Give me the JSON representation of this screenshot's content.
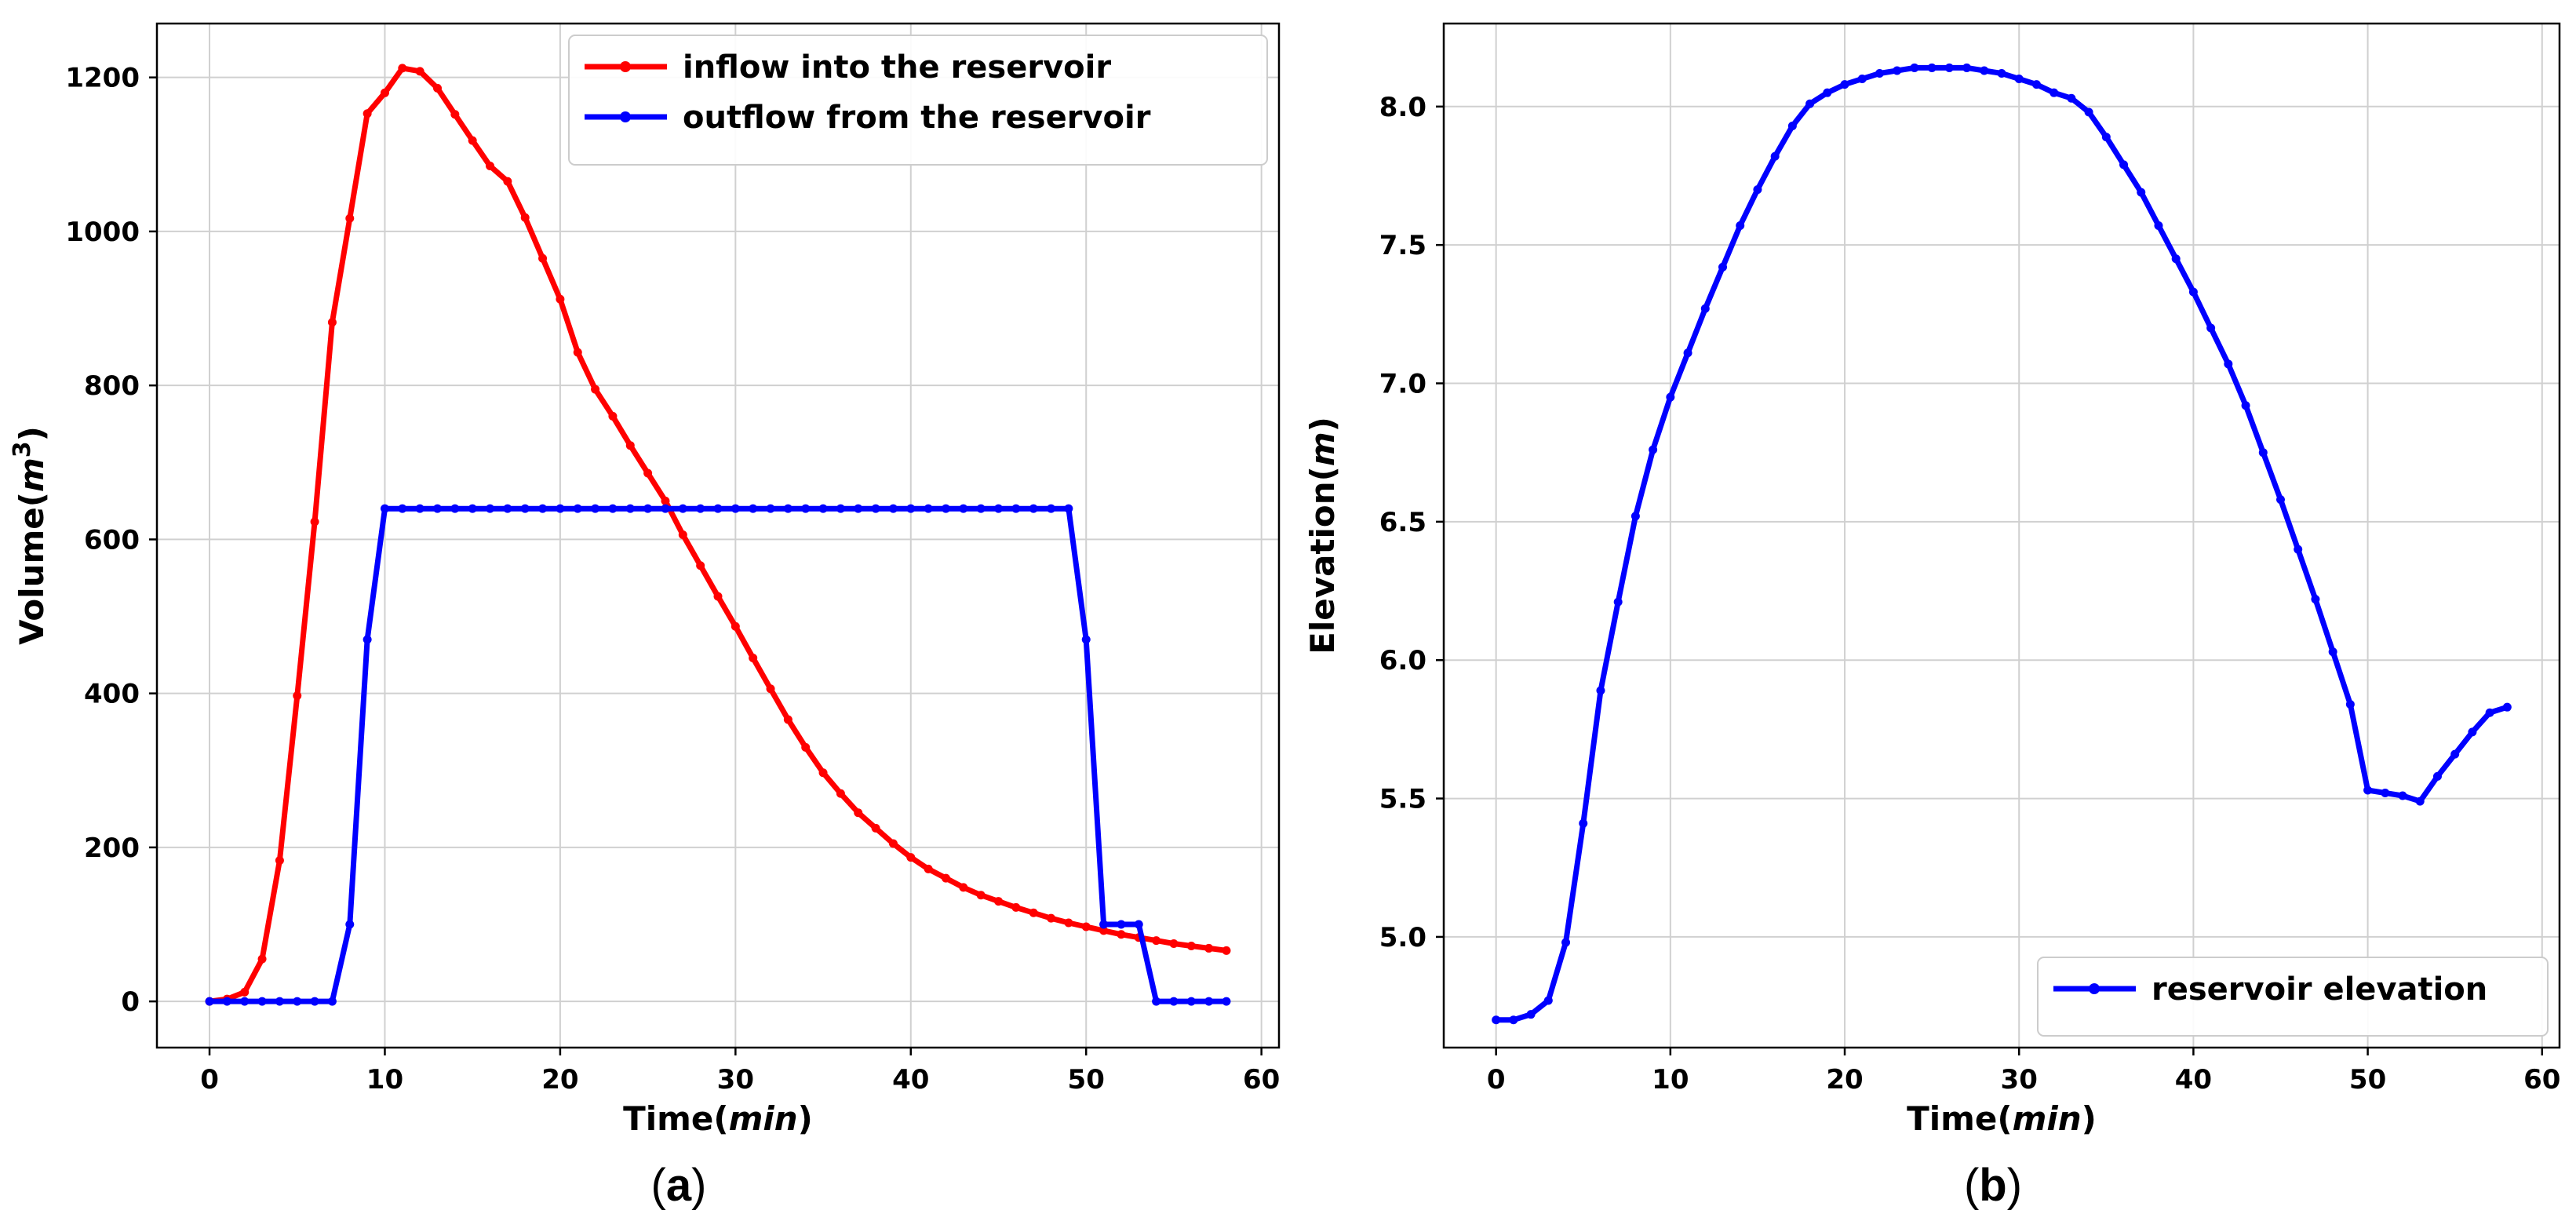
{
  "chart_data": [
    {
      "type": "line",
      "panel_label": "(a)",
      "xlabel": "Time(min)",
      "ylabel": "Volume(m3)",
      "xlim": [
        -3,
        61
      ],
      "ylim": [
        -60,
        1270
      ],
      "xticks": [
        0,
        10,
        20,
        30,
        40,
        50,
        60
      ],
      "yticks": [
        0,
        200,
        400,
        600,
        800,
        1000,
        1200
      ],
      "grid": true,
      "legend_position": "top-right",
      "series": [
        {
          "name": "inflow into the reservoir",
          "color": "#ff0000",
          "x": [
            0,
            1,
            2,
            3,
            4,
            5,
            6,
            7,
            8,
            9,
            10,
            11,
            12,
            13,
            14,
            15,
            16,
            17,
            18,
            19,
            20,
            21,
            22,
            23,
            24,
            25,
            26,
            27,
            28,
            29,
            30,
            31,
            32,
            33,
            34,
            35,
            36,
            37,
            38,
            39,
            40,
            41,
            42,
            43,
            44,
            45,
            46,
            47,
            48,
            49,
            50,
            51,
            52,
            53,
            54,
            55,
            56,
            57,
            58
          ],
          "values": [
            0,
            3,
            12,
            55,
            183,
            397,
            623,
            882,
            1017,
            1153,
            1180,
            1212,
            1208,
            1186,
            1152,
            1118,
            1085,
            1065,
            1018,
            965,
            912,
            843,
            795,
            760,
            722,
            686,
            650,
            606,
            566,
            526,
            487,
            446,
            406,
            366,
            330,
            297,
            270,
            245,
            225,
            205,
            187,
            172,
            160,
            148,
            138,
            130,
            122,
            115,
            108,
            102,
            97,
            92,
            87,
            83,
            79,
            75,
            72,
            69,
            66
          ]
        },
        {
          "name": "outflow from the reservoir",
          "color": "#0000ff",
          "x": [
            0,
            1,
            2,
            3,
            4,
            5,
            6,
            7,
            8,
            9,
            10,
            11,
            12,
            13,
            14,
            15,
            16,
            17,
            18,
            19,
            20,
            21,
            22,
            23,
            24,
            25,
            26,
            27,
            28,
            29,
            30,
            31,
            32,
            33,
            34,
            35,
            36,
            37,
            38,
            39,
            40,
            41,
            42,
            43,
            44,
            45,
            46,
            47,
            48,
            49,
            50,
            51,
            52,
            53,
            54,
            55,
            56,
            57,
            58
          ],
          "values": [
            0,
            0,
            0,
            0,
            0,
            0,
            0,
            0,
            100,
            470,
            640,
            640,
            640,
            640,
            640,
            640,
            640,
            640,
            640,
            640,
            640,
            640,
            640,
            640,
            640,
            640,
            640,
            640,
            640,
            640,
            640,
            640,
            640,
            640,
            640,
            640,
            640,
            640,
            640,
            640,
            640,
            640,
            640,
            640,
            640,
            640,
            640,
            640,
            640,
            640,
            470,
            100,
            100,
            100,
            0,
            0,
            0,
            0,
            0
          ]
        }
      ]
    },
    {
      "type": "line",
      "panel_label": "(b)",
      "xlabel": "Time(min)",
      "ylabel": "Elevation(m)",
      "xlim": [
        -3,
        61
      ],
      "ylim": [
        4.6,
        8.3
      ],
      "xticks": [
        0,
        10,
        20,
        30,
        40,
        50,
        60
      ],
      "yticks": [
        5.0,
        5.5,
        6.0,
        6.5,
        7.0,
        7.5,
        8.0
      ],
      "grid": true,
      "legend_position": "bottom-right",
      "series": [
        {
          "name": "reservoir elevation",
          "color": "#0000ff",
          "x": [
            0,
            1,
            2,
            3,
            4,
            5,
            6,
            7,
            8,
            9,
            10,
            11,
            12,
            13,
            14,
            15,
            16,
            17,
            18,
            19,
            20,
            21,
            22,
            23,
            24,
            25,
            26,
            27,
            28,
            29,
            30,
            31,
            32,
            33,
            34,
            35,
            36,
            37,
            38,
            39,
            40,
            41,
            42,
            43,
            44,
            45,
            46,
            47,
            48,
            49,
            50,
            51,
            52,
            53,
            54,
            55,
            56,
            57,
            58
          ],
          "values": [
            4.7,
            4.7,
            4.72,
            4.77,
            4.98,
            5.41,
            5.89,
            6.21,
            6.52,
            6.76,
            6.95,
            7.11,
            7.27,
            7.42,
            7.57,
            7.7,
            7.82,
            7.93,
            8.01,
            8.05,
            8.08,
            8.1,
            8.12,
            8.13,
            8.14,
            8.14,
            8.14,
            8.14,
            8.13,
            8.12,
            8.1,
            8.08,
            8.05,
            8.03,
            7.98,
            7.89,
            7.79,
            7.69,
            7.57,
            7.45,
            7.33,
            7.2,
            7.07,
            6.92,
            6.75,
            6.58,
            6.4,
            6.22,
            6.03,
            5.84,
            5.53,
            5.52,
            5.51,
            5.49,
            5.58,
            5.66,
            5.74,
            5.81,
            5.83
          ]
        }
      ]
    }
  ]
}
